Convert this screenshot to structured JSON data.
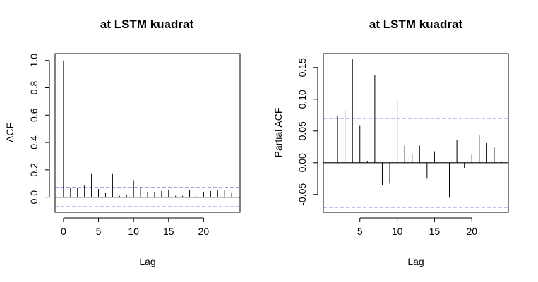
{
  "colors": {
    "ink": "#000000",
    "ci": "#0000cc",
    "background": "#ffffff"
  },
  "chart_data": [
    {
      "type": "bar",
      "title": "at LSTM kuadrat",
      "xlabel": "Lag",
      "ylabel": "ACF",
      "xlim": [
        -1.2,
        25.2
      ],
      "ylim": [
        -0.11,
        1.05
      ],
      "xticks": [
        0,
        5,
        10,
        15,
        20
      ],
      "xtick_labels": [
        "0",
        "5",
        "10",
        "15",
        "20"
      ],
      "yticks": [
        0.0,
        0.2,
        0.4,
        0.6,
        0.8,
        1.0
      ],
      "ytick_labels": [
        "0.0",
        "0.2",
        "0.4",
        "0.6",
        "0.8",
        "1.0"
      ],
      "ci_bound": 0.07,
      "zero_line": true,
      "grid": false,
      "lags": [
        0,
        1,
        2,
        3,
        4,
        5,
        6,
        7,
        8,
        9,
        10,
        11,
        12,
        13,
        14,
        15,
        16,
        17,
        18,
        19,
        20,
        21,
        22,
        23,
        24
      ],
      "values": [
        1.0,
        0.07,
        0.07,
        0.085,
        0.17,
        0.06,
        0.03,
        0.17,
        0.01,
        0.02,
        0.12,
        0.075,
        0.035,
        0.04,
        0.045,
        0.05,
        0.01,
        0.01,
        0.055,
        0.005,
        0.04,
        0.045,
        0.055,
        0.055,
        0.03
      ]
    },
    {
      "type": "bar",
      "title": "at LSTM kuadrat",
      "xlabel": "Lag",
      "ylabel": "Partial ACF",
      "xlim": [
        0.1,
        24.9
      ],
      "ylim": [
        -0.078,
        0.172
      ],
      "xticks": [
        5,
        10,
        15,
        20
      ],
      "xtick_labels": [
        "5",
        "10",
        "15",
        "20"
      ],
      "yticks": [
        -0.05,
        0.0,
        0.05,
        0.1,
        0.15
      ],
      "ytick_labels": [
        "-0.05",
        "0.00",
        "0.05",
        "0.10",
        "0.15"
      ],
      "ci_bound": 0.07,
      "zero_line": true,
      "grid": false,
      "lags": [
        1,
        2,
        3,
        4,
        5,
        6,
        7,
        8,
        9,
        10,
        11,
        12,
        13,
        14,
        15,
        16,
        17,
        18,
        19,
        20,
        21,
        22,
        23,
        24
      ],
      "values": [
        0.07,
        0.073,
        0.083,
        0.163,
        0.058,
        0.002,
        0.138,
        -0.035,
        -0.033,
        0.099,
        0.027,
        0.013,
        0.027,
        -0.025,
        0.018,
        0.0,
        -0.055,
        0.036,
        -0.009,
        0.013,
        0.043,
        0.031,
        0.024,
        0.001
      ]
    }
  ]
}
